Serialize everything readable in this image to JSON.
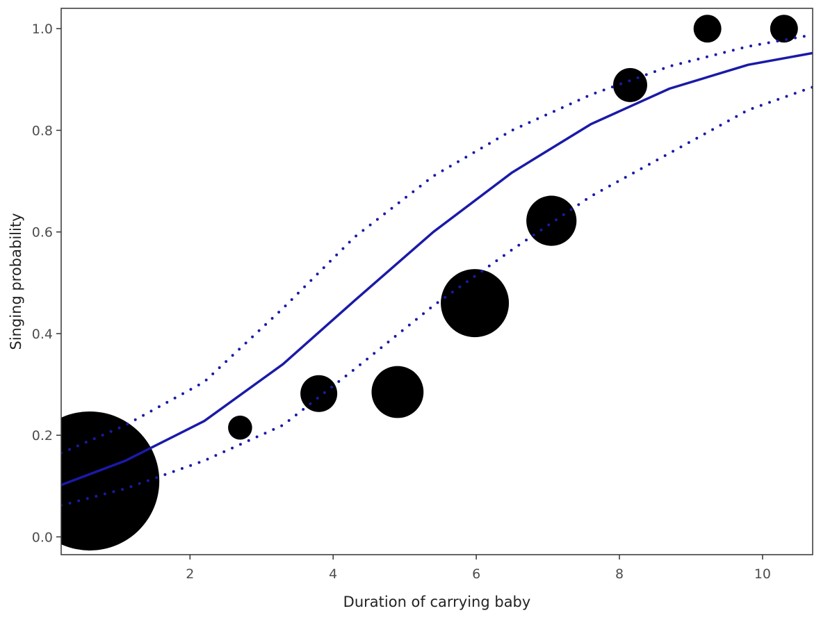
{
  "chart_data": {
    "type": "scatter",
    "title": "",
    "xlabel": "Duration of carrying baby",
    "ylabel": "Singing probability",
    "xlim": [
      0.2,
      10.7
    ],
    "ylim": [
      -0.035,
      1.04
    ],
    "x_ticks": [
      2,
      4,
      6,
      8,
      10
    ],
    "y_ticks": [
      0.0,
      0.2,
      0.4,
      0.6,
      0.8,
      1.0
    ],
    "x_tick_labels": [
      "2",
      "4",
      "6",
      "8",
      "10"
    ],
    "y_tick_labels": [
      "0.0",
      "0.2",
      "0.4",
      "0.6",
      "0.8",
      "1.0"
    ],
    "grid": false,
    "legend": "none",
    "colors": {
      "fit": "#1a1aa8",
      "points": "#000000",
      "frame": "#333333"
    },
    "points": [
      {
        "x": 0.6,
        "y": 0.11,
        "size": 100
      },
      {
        "x": 2.7,
        "y": 0.215,
        "size": 3
      },
      {
        "x": 3.8,
        "y": 0.282,
        "size": 7
      },
      {
        "x": 4.9,
        "y": 0.285,
        "size": 14
      },
      {
        "x": 5.98,
        "y": 0.46,
        "size": 24
      },
      {
        "x": 7.05,
        "y": 0.622,
        "size": 13
      },
      {
        "x": 8.15,
        "y": 0.889,
        "size": 6
      },
      {
        "x": 9.23,
        "y": 1.0,
        "size": 4
      },
      {
        "x": 10.3,
        "y": 1.0,
        "size": 4
      }
    ],
    "fit_line": {
      "x": [
        0.2,
        1.1,
        2.2,
        3.3,
        4.3,
        5.4,
        6.5,
        7.6,
        8.7,
        9.8,
        10.7
      ],
      "y": [
        0.102,
        0.15,
        0.228,
        0.34,
        0.465,
        0.6,
        0.717,
        0.812,
        0.882,
        0.929,
        0.952
      ]
    },
    "ci_upper": {
      "x": [
        0.2,
        1.1,
        2.2,
        3.3,
        4.3,
        5.4,
        6.5,
        7.6,
        8.7,
        9.8,
        10.7
      ],
      "y": [
        0.165,
        0.22,
        0.305,
        0.45,
        0.59,
        0.71,
        0.8,
        0.87,
        0.926,
        0.965,
        0.988
      ]
    },
    "ci_lower": {
      "x": [
        0.2,
        1.1,
        2.2,
        3.3,
        4.3,
        5.4,
        6.5,
        7.6,
        8.7,
        9.8,
        10.7
      ],
      "y": [
        0.062,
        0.095,
        0.15,
        0.22,
        0.33,
        0.455,
        0.565,
        0.67,
        0.755,
        0.84,
        0.885
      ]
    }
  }
}
